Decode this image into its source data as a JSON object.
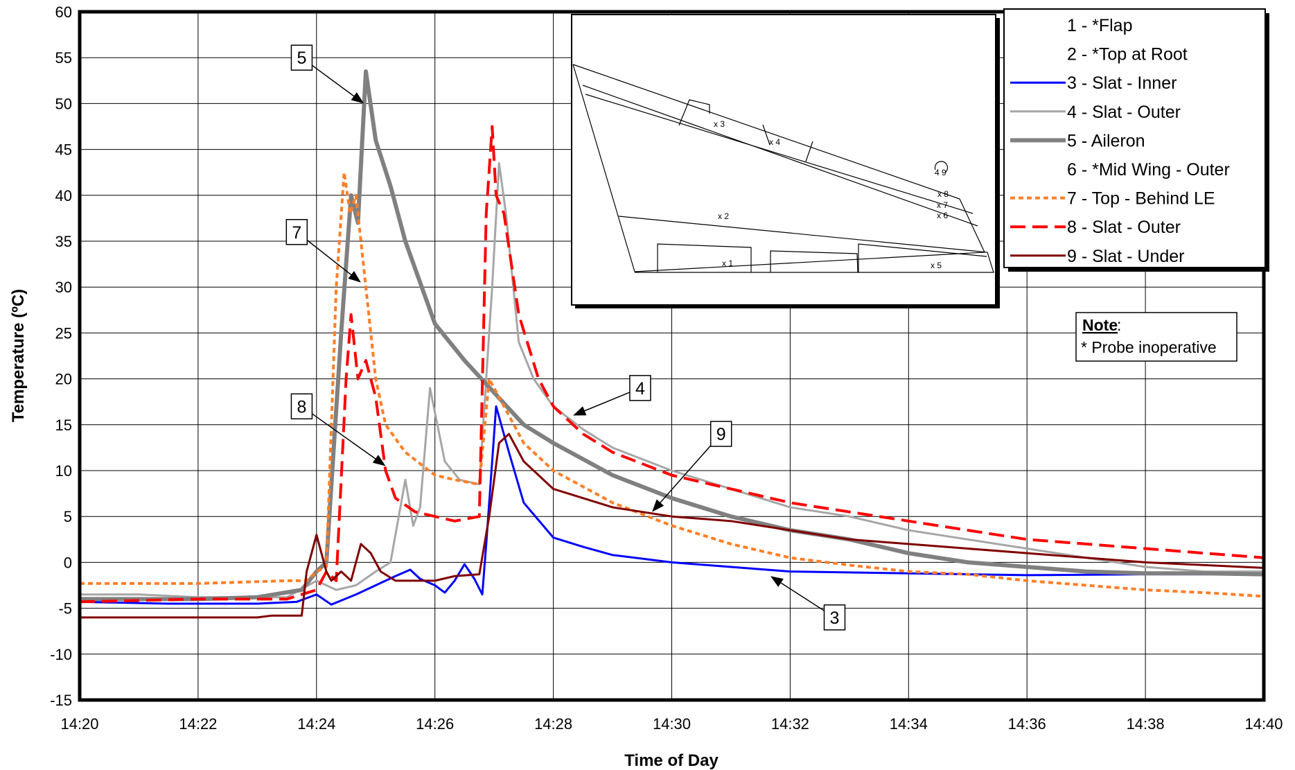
{
  "chart_data": {
    "type": "line",
    "xlabel": "Time of Day",
    "ylabel": "Temperature (ºC)",
    "xlim": [
      "14:20",
      "14:40"
    ],
    "ylim": [
      -15,
      60
    ],
    "x_ticks": [
      "14:20",
      "14:22",
      "14:24",
      "14:26",
      "14:28",
      "14:30",
      "14:32",
      "14:34",
      "14:36",
      "14:38",
      "14:40"
    ],
    "y_ticks": [
      "60",
      "55",
      "50",
      "45",
      "40",
      "35",
      "30",
      "25",
      "20",
      "15",
      "10",
      "5",
      "0",
      "-5",
      "-10",
      "-15"
    ],
    "grid": true,
    "legend_position": "top-right",
    "series": [
      {
        "name": "1 - *Flap",
        "color": "",
        "style": "none",
        "points": []
      },
      {
        "name": "2 - *Top at Root",
        "color": "",
        "style": "none",
        "points": []
      },
      {
        "name": "3 - Slat - Inner",
        "color": "#0000FF",
        "style": "solid",
        "width": 3,
        "points": [
          [
            "14:20:00",
            -4.3
          ],
          [
            "14:21:30",
            -4.5
          ],
          [
            "14:23:00",
            -4.5
          ],
          [
            "14:23:40",
            -4.3
          ],
          [
            "14:24:00",
            -3.5
          ],
          [
            "14:24:15",
            -4.6
          ],
          [
            "14:24:40",
            -3.5
          ],
          [
            "14:25:00",
            -2.5
          ],
          [
            "14:25:20",
            -1.5
          ],
          [
            "14:25:35",
            -0.8
          ],
          [
            "14:25:45",
            -1.8
          ],
          [
            "14:26:00",
            -2.5
          ],
          [
            "14:26:10",
            -3.3
          ],
          [
            "14:26:20",
            -2
          ],
          [
            "14:26:30",
            -0.2
          ],
          [
            "14:26:40",
            -1.8
          ],
          [
            "14:26:48",
            -3.5
          ],
          [
            "14:26:52",
            2
          ],
          [
            "14:27:02",
            17
          ],
          [
            "14:27:15",
            12
          ],
          [
            "14:27:30",
            6.5
          ],
          [
            "14:28:00",
            2.7
          ],
          [
            "14:28:30",
            1.7
          ],
          [
            "14:29:00",
            0.8
          ],
          [
            "14:30:00",
            0
          ],
          [
            "14:31:00",
            -0.5
          ],
          [
            "14:32:00",
            -1
          ],
          [
            "14:34:00",
            -1.2
          ],
          [
            "14:36:00",
            -1.4
          ],
          [
            "14:38:00",
            -1.3
          ],
          [
            "14:40:00",
            -1.3
          ]
        ]
      },
      {
        "name": "4 - Slat - Outer",
        "color": "#A6A6A6",
        "style": "solid",
        "width": 3,
        "points": [
          [
            "14:20:00",
            -3.5
          ],
          [
            "14:21:00",
            -3.5
          ],
          [
            "14:22:00",
            -3.8
          ],
          [
            "14:23:30",
            -3.8
          ],
          [
            "14:24:00",
            -2
          ],
          [
            "14:24:20",
            -3
          ],
          [
            "14:24:40",
            -2.5
          ],
          [
            "14:25:00",
            -1
          ],
          [
            "14:25:15",
            0
          ],
          [
            "14:25:30",
            9
          ],
          [
            "14:25:38",
            4
          ],
          [
            "14:25:45",
            6
          ],
          [
            "14:25:55",
            19
          ],
          [
            "14:26:10",
            11
          ],
          [
            "14:26:25",
            9
          ],
          [
            "14:26:45",
            8.5
          ],
          [
            "14:26:58",
            30
          ],
          [
            "14:27:05",
            43.5
          ],
          [
            "14:27:12",
            38
          ],
          [
            "14:27:25",
            24
          ],
          [
            "14:27:40",
            20
          ],
          [
            "14:28:00",
            17
          ],
          [
            "14:28:30",
            14.5
          ],
          [
            "14:29:00",
            12.5
          ],
          [
            "14:30:00",
            10
          ],
          [
            "14:31:00",
            8
          ],
          [
            "14:32:00",
            6
          ],
          [
            "14:33:00",
            5
          ],
          [
            "14:34:00",
            3.5
          ],
          [
            "14:35:00",
            2.5
          ],
          [
            "14:36:00",
            1.5
          ],
          [
            "14:37:00",
            0.5
          ],
          [
            "14:38:00",
            -0.5
          ],
          [
            "14:39:00",
            -1
          ],
          [
            "14:40:00",
            -1
          ]
        ]
      },
      {
        "name": "5 - Aileron",
        "color": "#808080",
        "style": "solid",
        "width": 6,
        "points": [
          [
            "14:20:00",
            -4
          ],
          [
            "14:22:00",
            -4
          ],
          [
            "14:23:00",
            -3.8
          ],
          [
            "14:23:45",
            -3
          ],
          [
            "14:24:00",
            -1
          ],
          [
            "14:24:10",
            0
          ],
          [
            "14:24:25",
            25
          ],
          [
            "14:24:35",
            40
          ],
          [
            "14:24:42",
            37
          ],
          [
            "14:24:50",
            53.5
          ],
          [
            "14:25:00",
            46
          ],
          [
            "14:25:15",
            41
          ],
          [
            "14:25:30",
            35
          ],
          [
            "14:26:00",
            26
          ],
          [
            "14:26:30",
            22
          ],
          [
            "14:27:00",
            18.5
          ],
          [
            "14:27:30",
            15
          ],
          [
            "14:28:00",
            13
          ],
          [
            "14:29:00",
            9.5
          ],
          [
            "14:30:00",
            7
          ],
          [
            "14:31:00",
            5
          ],
          [
            "14:32:00",
            3.5
          ],
          [
            "14:33:00",
            2.5
          ],
          [
            "14:34:00",
            1
          ],
          [
            "14:35:00",
            0
          ],
          [
            "14:36:00",
            -0.5
          ],
          [
            "14:37:00",
            -1
          ],
          [
            "14:38:00",
            -1.2
          ],
          [
            "14:39:00",
            -1.2
          ],
          [
            "14:40:00",
            -1.3
          ]
        ]
      },
      {
        "name": "6 - *Mid Wing - Outer",
        "color": "",
        "style": "none",
        "points": []
      },
      {
        "name": "7 - Top - Behind LE",
        "color": "#FF7F27",
        "style": "dotted",
        "width": 4,
        "points": [
          [
            "14:20:00",
            -2.3
          ],
          [
            "14:22:00",
            -2.3
          ],
          [
            "14:23:30",
            -2
          ],
          [
            "14:23:50",
            -2
          ],
          [
            "14:24:00",
            -1
          ],
          [
            "14:24:10",
            -0.5
          ],
          [
            "14:24:20",
            30
          ],
          [
            "14:24:28",
            42.5
          ],
          [
            "14:24:34",
            38
          ],
          [
            "14:24:40",
            40
          ],
          [
            "14:24:50",
            30
          ],
          [
            "14:25:00",
            20
          ],
          [
            "14:25:10",
            15
          ],
          [
            "14:25:30",
            12
          ],
          [
            "14:26:00",
            9.5
          ],
          [
            "14:26:20",
            9
          ],
          [
            "14:26:45",
            8.5
          ],
          [
            "14:26:55",
            20
          ],
          [
            "14:27:10",
            17
          ],
          [
            "14:27:30",
            13
          ],
          [
            "14:28:00",
            10
          ],
          [
            "14:29:00",
            6.5
          ],
          [
            "14:30:00",
            4
          ],
          [
            "14:31:00",
            2
          ],
          [
            "14:32:00",
            0.5
          ],
          [
            "14:33:00",
            -0.3
          ],
          [
            "14:34:00",
            -1
          ],
          [
            "14:35:00",
            -1.3
          ],
          [
            "14:36:00",
            -2
          ],
          [
            "14:37:00",
            -2.5
          ],
          [
            "14:38:00",
            -3
          ],
          [
            "14:39:00",
            -3.3
          ],
          [
            "14:40:00",
            -3.7
          ]
        ]
      },
      {
        "name": "8 - Slat - Outer",
        "color": "#FF0000",
        "style": "dashed",
        "width": 4,
        "points": [
          [
            "14:20:00",
            -4.3
          ],
          [
            "14:22:00",
            -4
          ],
          [
            "14:23:30",
            -4
          ],
          [
            "14:24:00",
            -3
          ],
          [
            "14:24:10",
            -1
          ],
          [
            "14:24:20",
            -2
          ],
          [
            "14:24:30",
            20
          ],
          [
            "14:24:35",
            27
          ],
          [
            "14:24:42",
            20
          ],
          [
            "14:24:50",
            22
          ],
          [
            "14:25:00",
            18
          ],
          [
            "14:25:10",
            10
          ],
          [
            "14:25:20",
            7
          ],
          [
            "14:25:40",
            5.5
          ],
          [
            "14:26:00",
            5
          ],
          [
            "14:26:20",
            4.5
          ],
          [
            "14:26:45",
            5
          ],
          [
            "14:26:52",
            38
          ],
          [
            "14:26:58",
            47.5
          ],
          [
            "14:27:02",
            40
          ],
          [
            "14:27:10",
            38
          ],
          [
            "14:27:25",
            27
          ],
          [
            "14:27:45",
            20
          ],
          [
            "14:28:00",
            17
          ],
          [
            "14:28:30",
            14
          ],
          [
            "14:29:00",
            12
          ],
          [
            "14:30:00",
            9.5
          ],
          [
            "14:31:00",
            8
          ],
          [
            "14:32:00",
            6.5
          ],
          [
            "14:33:00",
            5.5
          ],
          [
            "14:34:00",
            4.5
          ],
          [
            "14:35:00",
            3.5
          ],
          [
            "14:36:00",
            2.5
          ],
          [
            "14:37:00",
            2
          ],
          [
            "14:38:00",
            1.5
          ],
          [
            "14:39:00",
            1
          ],
          [
            "14:40:00",
            0.5
          ]
        ]
      },
      {
        "name": "9 - Slat - Under",
        "color": "#800000",
        "style": "solid",
        "width": 3,
        "points": [
          [
            "14:20:00",
            -6
          ],
          [
            "14:22:00",
            -6
          ],
          [
            "14:23:00",
            -6
          ],
          [
            "14:23:15",
            -5.8
          ],
          [
            "14:23:45",
            -5.8
          ],
          [
            "14:23:50",
            -1
          ],
          [
            "14:24:00",
            3
          ],
          [
            "14:24:10",
            -1
          ],
          [
            "14:24:15",
            -2
          ],
          [
            "14:24:25",
            -1
          ],
          [
            "14:24:35",
            -2
          ],
          [
            "14:24:45",
            2
          ],
          [
            "14:24:55",
            1
          ],
          [
            "14:25:05",
            -1
          ],
          [
            "14:25:20",
            -2
          ],
          [
            "14:25:40",
            -2
          ],
          [
            "14:26:00",
            -2
          ],
          [
            "14:26:20",
            -1.5
          ],
          [
            "14:26:45",
            -1.3
          ],
          [
            "14:26:55",
            5
          ],
          [
            "14:27:05",
            13
          ],
          [
            "14:27:15",
            14
          ],
          [
            "14:27:30",
            11
          ],
          [
            "14:28:00",
            8
          ],
          [
            "14:28:30",
            7
          ],
          [
            "14:29:00",
            6
          ],
          [
            "14:30:00",
            5
          ],
          [
            "14:31:00",
            4.5
          ],
          [
            "14:32:00",
            3.5
          ],
          [
            "14:33:00",
            2.5
          ],
          [
            "14:34:00",
            2
          ],
          [
            "14:35:00",
            1.5
          ],
          [
            "14:36:00",
            1
          ],
          [
            "14:37:00",
            0.5
          ],
          [
            "14:38:00",
            0
          ],
          [
            "14:39:00",
            -0.3
          ],
          [
            "14:40:00",
            -0.6
          ]
        ]
      }
    ],
    "callouts": [
      {
        "label": "5",
        "box": [
          "14:23:45",
          55
        ],
        "target": [
          "14:24:48",
          50
        ]
      },
      {
        "label": "7",
        "box": [
          "14:23:40",
          36
        ],
        "target": [
          "14:24:45",
          30.5
        ]
      },
      {
        "label": "8",
        "box": [
          "14:23:45",
          17
        ],
        "target": [
          "14:25:10",
          10.5
        ]
      },
      {
        "label": "4",
        "box": [
          "14:29:28",
          19
        ],
        "target": [
          "14:28:20",
          16
        ]
      },
      {
        "label": "9",
        "box": [
          "14:30:50",
          14
        ],
        "target": [
          "14:29:40",
          5.5
        ]
      },
      {
        "label": "3",
        "box": [
          "14:32:45",
          -6
        ],
        "target": [
          "14:31:40",
          -1.5
        ]
      }
    ],
    "note": {
      "title": "Note",
      "suffix": ":",
      "text": "* Probe inoperative"
    },
    "inset_labels": [
      "x 3",
      "x 4",
      "x 2",
      "x 1",
      "x 5",
      "x 8",
      "x 7",
      "x 6",
      "4  9"
    ]
  }
}
